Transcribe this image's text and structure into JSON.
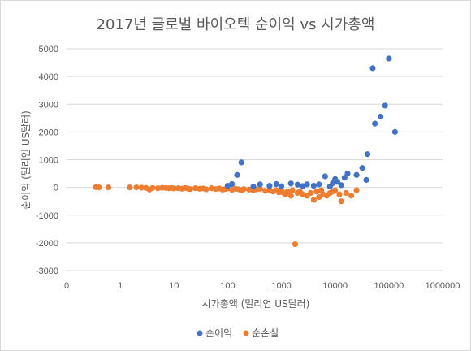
{
  "chart_data": {
    "type": "scatter",
    "title": "2017년 글로벌 바이오텍 순이익 vs 시가총액",
    "xlabel": "시가총액 (밀리언 US달러)",
    "ylabel": "순이익 (밀리언 US달러)",
    "x_scale": "log",
    "xlim": [
      0.1,
      1000000
    ],
    "ylim": [
      -3000,
      5000
    ],
    "x_ticks": [
      "0",
      "1",
      "10",
      "100",
      "1000",
      "10000",
      "100000",
      "1000000"
    ],
    "y_ticks": [
      "5000",
      "4000",
      "3000",
      "2000",
      "1000",
      "0",
      "-1000",
      "-2000",
      "-3000"
    ],
    "grid": "horizontal",
    "legend_position": "bottom",
    "colors": {
      "순이익": "#4472c4",
      "순손실": "#ed7d31"
    },
    "series": [
      {
        "name": "순이익",
        "points": [
          [
            100,
            60
          ],
          [
            120,
            120
          ],
          [
            150,
            450
          ],
          [
            180,
            900
          ],
          [
            300,
            30
          ],
          [
            400,
            110
          ],
          [
            600,
            60
          ],
          [
            800,
            120
          ],
          [
            1000,
            40
          ],
          [
            1500,
            140
          ],
          [
            2000,
            100
          ],
          [
            2500,
            50
          ],
          [
            3000,
            110
          ],
          [
            4000,
            60
          ],
          [
            5000,
            110
          ],
          [
            6500,
            400
          ],
          [
            8000,
            30
          ],
          [
            9000,
            150
          ],
          [
            10000,
            300
          ],
          [
            11000,
            200
          ],
          [
            13000,
            80
          ],
          [
            15000,
            350
          ],
          [
            17000,
            500
          ],
          [
            25000,
            450
          ],
          [
            32000,
            700
          ],
          [
            38000,
            270
          ],
          [
            40000,
            1200
          ],
          [
            50000,
            4300
          ],
          [
            55000,
            2300
          ],
          [
            70000,
            2550
          ],
          [
            85000,
            2950
          ],
          [
            100000,
            4650
          ],
          [
            130000,
            2000
          ]
        ]
      },
      {
        "name": "순손실",
        "points": [
          [
            0.35,
            10
          ],
          [
            0.4,
            0
          ],
          [
            0.6,
            0
          ],
          [
            1.5,
            0
          ],
          [
            2,
            0
          ],
          [
            2.5,
            -10
          ],
          [
            3,
            -20
          ],
          [
            3.5,
            -80
          ],
          [
            4,
            -20
          ],
          [
            5,
            -30
          ],
          [
            6,
            -15
          ],
          [
            7,
            -20
          ],
          [
            8,
            -30
          ],
          [
            9,
            -20
          ],
          [
            10,
            -40
          ],
          [
            12,
            -30
          ],
          [
            14,
            -50
          ],
          [
            16,
            -20
          ],
          [
            18,
            -40
          ],
          [
            20,
            -60
          ],
          [
            25,
            -30
          ],
          [
            30,
            -50
          ],
          [
            35,
            -40
          ],
          [
            40,
            -70
          ],
          [
            50,
            -30
          ],
          [
            60,
            -60
          ],
          [
            70,
            -40
          ],
          [
            80,
            -80
          ],
          [
            90,
            -60
          ],
          [
            100,
            -40
          ],
          [
            120,
            -90
          ],
          [
            140,
            -50
          ],
          [
            160,
            -70
          ],
          [
            180,
            -100
          ],
          [
            200,
            -60
          ],
          [
            250,
            -80
          ],
          [
            300,
            -110
          ],
          [
            350,
            -70
          ],
          [
            400,
            -50
          ],
          [
            500,
            -120
          ],
          [
            600,
            -90
          ],
          [
            700,
            -150
          ],
          [
            800,
            -100
          ],
          [
            900,
            -180
          ],
          [
            1000,
            -120
          ],
          [
            1100,
            -200
          ],
          [
            1200,
            -250
          ],
          [
            1300,
            -150
          ],
          [
            1500,
            -300
          ],
          [
            1600,
            -100
          ],
          [
            1800,
            -2050
          ],
          [
            2000,
            -200
          ],
          [
            2200,
            -150
          ],
          [
            2500,
            -250
          ],
          [
            3000,
            -300
          ],
          [
            3500,
            -200
          ],
          [
            4000,
            -450
          ],
          [
            4500,
            -150
          ],
          [
            5000,
            -350
          ],
          [
            5500,
            -100
          ],
          [
            6000,
            -250
          ],
          [
            7000,
            -300
          ],
          [
            8000,
            -200
          ],
          [
            9000,
            -150
          ],
          [
            10000,
            -100
          ],
          [
            12000,
            -250
          ],
          [
            13000,
            -500
          ],
          [
            16000,
            -200
          ],
          [
            20000,
            -300
          ],
          [
            25000,
            -100
          ]
        ]
      }
    ]
  }
}
